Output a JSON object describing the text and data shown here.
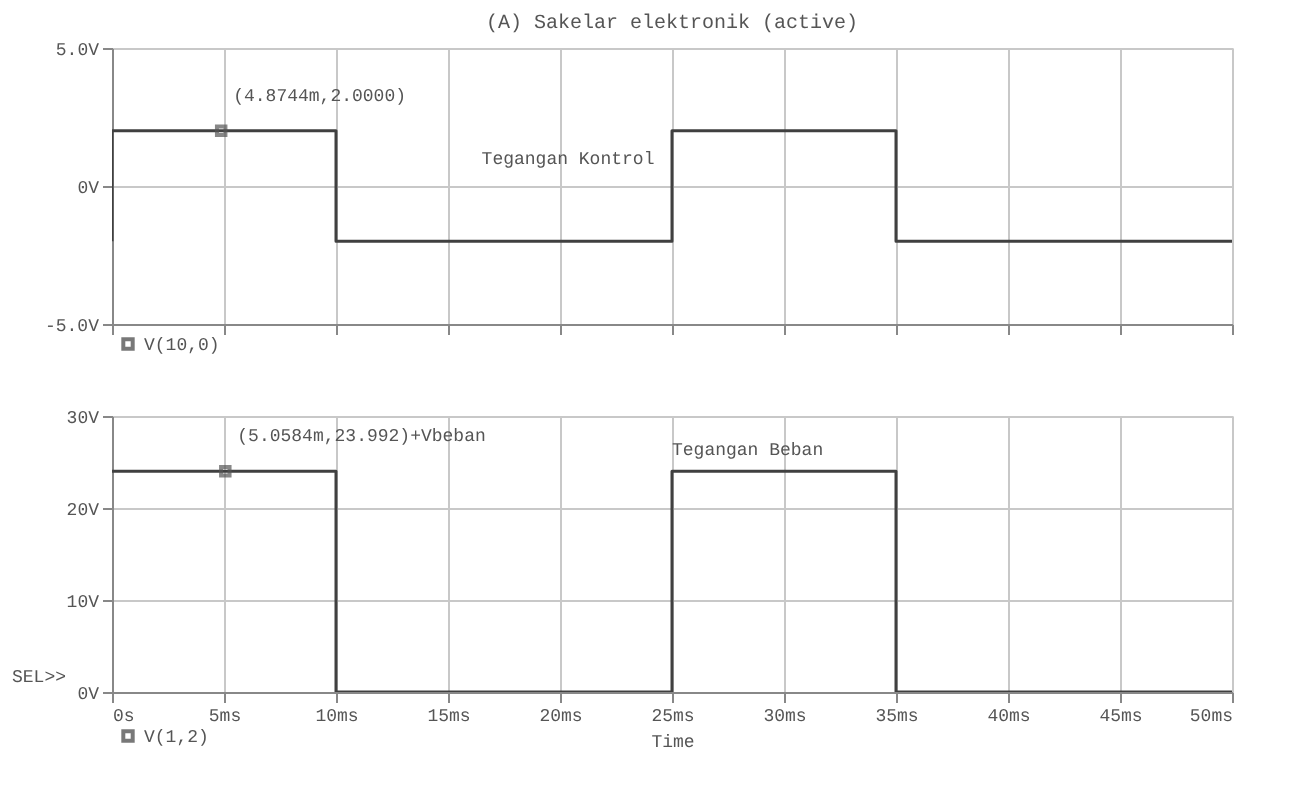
{
  "chart_data": [
    {
      "type": "line",
      "title": "(A) Sakelar elektronik (active)",
      "tick_labels": "y",
      "grid": true,
      "legend": "bottom left",
      "xlim": [
        0,
        50
      ],
      "xticks": [
        {
          "value": 0,
          "label": null
        },
        {
          "value": 5,
          "label": null
        },
        {
          "value": 10,
          "label": null
        },
        {
          "value": 15,
          "label": null
        },
        {
          "value": 20,
          "label": null
        },
        {
          "value": 25,
          "label": null
        },
        {
          "value": 30,
          "label": null
        },
        {
          "value": 35,
          "label": null
        },
        {
          "value": 40,
          "label": null
        },
        {
          "value": 45,
          "label": null
        },
        {
          "value": 50,
          "label": null
        }
      ],
      "ylim": [
        -5,
        5
      ],
      "yticks": [
        {
          "value": -5,
          "label": "-5.0V"
        },
        {
          "value": 0,
          "label": "0V"
        },
        {
          "value": 5,
          "label": "5.0V"
        }
      ],
      "series": [
        {
          "name": "V(10,0)",
          "color": "#404040",
          "x": [
            0,
            0,
            10,
            10,
            25,
            25,
            35,
            35,
            50
          ],
          "values": [
            -2,
            2,
            2,
            -2,
            -2,
            2,
            2,
            -2,
            -2
          ]
        }
      ],
      "annotations": [
        "Tegangan Kontrol",
        {
          "text": "(4.8744m,2.0000)",
          "x": 4.8744,
          "y": 2.0
        }
      ]
    },
    {
      "type": "line",
      "xlabel": "Time",
      "grid": true,
      "legend": "bottom left",
      "xlim": [
        0,
        50
      ],
      "xticks": [
        {
          "value": 0,
          "label": "0s"
        },
        {
          "value": 5,
          "label": "5ms"
        },
        {
          "value": 10,
          "label": "10ms"
        },
        {
          "value": 15,
          "label": "15ms"
        },
        {
          "value": 20,
          "label": "20ms"
        },
        {
          "value": 25,
          "label": "25ms"
        },
        {
          "value": 30,
          "label": "30ms"
        },
        {
          "value": 35,
          "label": "35ms"
        },
        {
          "value": 40,
          "label": "40ms"
        },
        {
          "value": 45,
          "label": "45ms"
        },
        {
          "value": 50,
          "label": "50ms"
        }
      ],
      "ylim": [
        0,
        30
      ],
      "yticks": [
        {
          "value": 0,
          "label": "0V"
        },
        {
          "value": 10,
          "label": "10V"
        },
        {
          "value": 20,
          "label": "20V"
        },
        {
          "value": 30,
          "label": "30V"
        }
      ],
      "series": [
        {
          "name": "V(1,2)",
          "color": "#404040",
          "x": [
            0,
            10,
            10,
            25,
            25,
            35,
            35,
            50
          ],
          "values": [
            24,
            24,
            0,
            0,
            24,
            24,
            0,
            0
          ]
        }
      ],
      "annotations": [
        "Tegangan Beban",
        "SEL>>",
        {
          "text": "(5.0584m,23.992)+Vbeban",
          "x": 5.0584,
          "y": 23.992
        }
      ]
    }
  ]
}
